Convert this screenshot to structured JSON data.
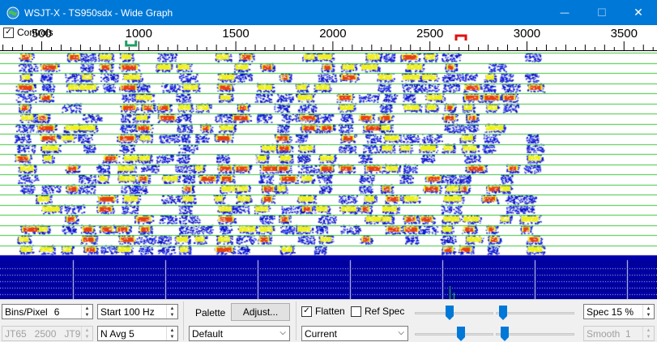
{
  "window": {
    "title": "WSJT-X - TS950sdx - Wide Graph",
    "minimize_glyph": "—",
    "maximize_glyph": "☐",
    "close_glyph": "✕",
    "icon": "wsjtx-globe-icon"
  },
  "scale": {
    "controls_label": "Controls",
    "controls_checked": true,
    "freq_min": 285,
    "freq_max": 3670,
    "major_ticks": [
      "500",
      "1000",
      "1500",
      "2000",
      "2500",
      "3000",
      "3500"
    ],
    "rx_marker_freq": 960,
    "tx_marker_freq": 2660,
    "rx_marker_color": "#1fa060",
    "tx_marker_color": "#e01010"
  },
  "waterfall": {
    "palette_colors": [
      "#0000a8",
      "#1020e0",
      "#ffffff",
      "#f0f020",
      "#e84010"
    ],
    "line_color": "#3cc83c"
  },
  "controls": {
    "bins_pixel_label": "Bins/Pixel",
    "bins_pixel_value": "6",
    "start_label": "Start 100 Hz",
    "mode_label": "JT65   2500   JT9",
    "navg_label": "N Avg 5",
    "palette_label": "Palette",
    "adjust_label": "Adjust...",
    "palette_value": "Default",
    "flatten_label": "Flatten",
    "flatten_checked": true,
    "ref_spec_label": "Ref Spec",
    "ref_spec_checked": false,
    "spectrum_value": "Current",
    "spec_label": "Spec 15 %",
    "smooth_label": "Smooth  1"
  }
}
